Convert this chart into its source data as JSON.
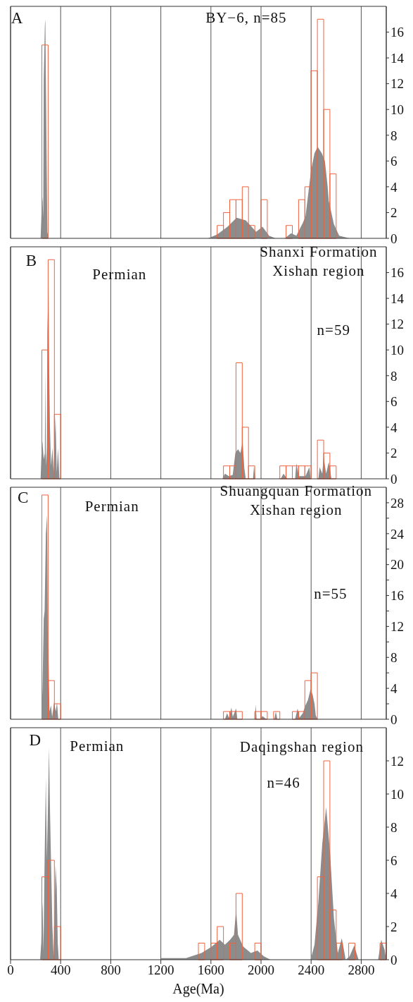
{
  "chart_data": [
    {
      "type": "histogram",
      "xlim": [
        0,
        3000
      ],
      "xticks": [
        0,
        400,
        800,
        1200,
        1600,
        2000,
        2400,
        2800
      ],
      "ylim": [
        0,
        18
      ],
      "yticks": [
        0,
        2,
        4,
        6,
        8,
        10,
        12,
        14,
        16
      ],
      "grid": "x",
      "tick_labels": "y",
      "annotations": [
        "A",
        "BY−6, n=85"
      ],
      "series": [
        {
          "type": "histogram",
          "color": "#f0623e",
          "bins": [
            250,
            300,
            350,
            400,
            450,
            500,
            550,
            600,
            650,
            700,
            750,
            800,
            850,
            900,
            950,
            1000,
            1050,
            1100,
            1150,
            1200,
            1250,
            1300,
            1350,
            1400,
            1450,
            1500,
            1550,
            1600,
            1650,
            1700,
            1750,
            1800,
            1850,
            1900,
            1950,
            2000,
            2050,
            2100,
            2150,
            2200,
            2250,
            2300,
            2350,
            2400,
            2450,
            2500,
            2550,
            2600
          ],
          "values": [
            15,
            0,
            0,
            0,
            0,
            0,
            0,
            0,
            0,
            0,
            0,
            0,
            0,
            0,
            0,
            0,
            0,
            0,
            0,
            0,
            0,
            0,
            0,
            0,
            0,
            0,
            0,
            0,
            1,
            2,
            3,
            3,
            4,
            1,
            0,
            3,
            0,
            0,
            0,
            1,
            0,
            3,
            4,
            13,
            17,
            10,
            5
          ]
        },
        {
          "type": "area",
          "color": "#8c8c8c",
          "x": [
            240,
            247,
            255,
            261,
            265,
            274,
            278,
            282,
            288,
            294,
            303,
            1577,
            1650,
            1733,
            1805,
            1878,
            1961,
            2012,
            2064,
            2116,
            2189,
            2240,
            2282,
            2334,
            2355,
            2375,
            2400,
            2427,
            2452,
            2485,
            2510,
            2531,
            2541,
            2582,
            2624,
            2707
          ],
          "values": [
            0,
            1.9,
            3.2,
            1.6,
            12.4,
            16.5,
            17,
            12.4,
            6.4,
            0.5,
            0,
            0,
            0.3,
            0.9,
            1.6,
            1.4,
            0.5,
            0.9,
            0.2,
            0,
            0,
            0.4,
            0.2,
            1.2,
            1.7,
            3.3,
            5.3,
            6.6,
            7.1,
            6.6,
            6.0,
            4.1,
            2.9,
            1.1,
            0.2,
            0
          ]
        }
      ]
    },
    {
      "type": "histogram",
      "xlim": [
        0,
        3000
      ],
      "xticks": [
        0,
        400,
        800,
        1200,
        1600,
        2000,
        2400,
        2800
      ],
      "ylim": [
        0,
        18
      ],
      "yticks": [
        0,
        2,
        4,
        6,
        8,
        10,
        12,
        14,
        16
      ],
      "grid": "x",
      "tick_labels": "y",
      "annotations": [
        "B",
        "Permian",
        "Shanxi Formation\nXishan region",
        "n=59"
      ],
      "series": [
        {
          "type": "histogram",
          "color": "#f0623e",
          "bins": [
            250,
            300,
            350,
            400,
            450,
            500,
            550,
            600,
            650,
            700,
            750,
            800,
            850,
            900,
            950,
            1000,
            1050,
            1100,
            1150,
            1200,
            1250,
            1300,
            1350,
            1400,
            1450,
            1500,
            1550,
            1600,
            1650,
            1700,
            1750,
            1800,
            1850,
            1900,
            1950,
            2000,
            2050,
            2100,
            2150,
            2200,
            2250,
            2300,
            2350,
            2400,
            2450,
            2500,
            2550,
            2600
          ],
          "values": [
            10,
            17,
            5,
            0,
            0,
            0,
            0,
            0,
            0,
            0,
            0,
            0,
            0,
            0,
            0,
            0,
            0,
            0,
            0,
            0,
            0,
            0,
            0,
            0,
            0,
            0,
            0,
            0,
            0,
            1,
            1,
            9,
            4,
            1,
            0,
            0,
            0,
            0,
            1,
            1,
            1,
            1,
            1,
            0,
            3,
            2,
            1
          ]
        },
        {
          "type": "area",
          "color": "#8c8c8c",
          "x": [
            240,
            251,
            255,
            265,
            274,
            278,
            282,
            286,
            290,
            294,
            303,
            309,
            315,
            323,
            334,
            344,
            359,
            369,
            379,
            390,
            1691,
            1712,
            1743,
            1774,
            1795,
            1816,
            1836,
            1853,
            1867,
            1878,
            1936,
            1944,
            1954,
            2158,
            2179,
            2210,
            2272,
            2282,
            2303,
            2355,
            2386,
            2396,
            2458,
            2468,
            2489,
            2500,
            2520,
            2541,
            2562
          ],
          "values": [
            0,
            3,
            2.8,
            1.5,
            2,
            8.5,
            2,
            1,
            2.5,
            11.4,
            15.2,
            8,
            3.9,
            1,
            2.4,
            0.5,
            4.9,
            0.5,
            2.4,
            0,
            0,
            0.4,
            0.2,
            0.3,
            2,
            2.3,
            2,
            2.9,
            0.8,
            0,
            0,
            1,
            0,
            0,
            0.4,
            0,
            0,
            1.2,
            0.2,
            0.2,
            0.9,
            0,
            0,
            0.9,
            0.4,
            1.7,
            0.4,
            1.3,
            0
          ]
        }
      ]
    },
    {
      "type": "histogram",
      "xlim": [
        0,
        3000
      ],
      "xticks": [
        0,
        400,
        800,
        1200,
        1600,
        2000,
        2400,
        2800
      ],
      "ylim": [
        0,
        30
      ],
      "yticks": [
        0,
        {
          "value": 2,
          "label": null
        },
        4,
        {
          "value": 6,
          "label": null
        },
        8,
        {
          "value": 10,
          "label": null
        },
        12,
        {
          "value": 14,
          "label": null
        },
        16,
        {
          "value": 18,
          "label": null
        },
        20,
        {
          "value": 22,
          "label": null
        },
        24,
        {
          "value": 26,
          "label": null
        },
        28
      ],
      "grid": "x",
      "tick_labels": "y",
      "annotations": [
        "C",
        "Permian",
        "Shuangquan Formation\nXishan region",
        "n=55"
      ],
      "series": [
        {
          "type": "histogram",
          "color": "#f0623e",
          "bins": [
            250,
            300,
            350,
            400,
            450,
            500,
            550,
            600,
            650,
            700,
            750,
            800,
            850,
            900,
            950,
            1000,
            1050,
            1100,
            1150,
            1200,
            1250,
            1300,
            1350,
            1400,
            1450,
            1500,
            1550,
            1600,
            1650,
            1700,
            1750,
            1800,
            1850,
            1900,
            1950,
            2000,
            2050,
            2100,
            2150,
            2200,
            2250,
            2300,
            2350,
            2400,
            2450
          ],
          "values": [
            29,
            5,
            2,
            0,
            0,
            0,
            0,
            0,
            0,
            0,
            0,
            0,
            0,
            0,
            0,
            0,
            0,
            0,
            0,
            0,
            0,
            0,
            0,
            0,
            0,
            0,
            0,
            0,
            0,
            1,
            1,
            1,
            0,
            0,
            1,
            1,
            0,
            1,
            0,
            0,
            1,
            1,
            5,
            6
          ]
        },
        {
          "type": "area",
          "color": "#8c8c8c",
          "x": [
            247,
            255,
            265,
            272,
            282,
            292,
            298,
            303,
            311,
            323,
            332,
            348,
            361,
            371,
            381,
            1712,
            1729,
            1743,
            1764,
            1774,
            1801,
            1811,
            1950,
            1957,
            1965,
            1992,
            2012,
            2043,
            2106,
            2118,
            2130,
            2272,
            2292,
            2307,
            2334,
            2355,
            2375,
            2396,
            2412,
            2427,
            2437,
            2452
          ],
          "values": [
            0,
            4,
            13,
            14,
            24,
            26.4,
            10,
            8.2,
            1,
            1.8,
            0.3,
            2.2,
            1,
            2.2,
            0,
            0,
            0.8,
            0.2,
            1.5,
            0.3,
            1.4,
            0,
            0,
            1.9,
            0,
            0,
            0.4,
            0,
            0,
            1,
            0,
            0,
            1.4,
            0.2,
            0.8,
            1.8,
            2.5,
            3.9,
            3.2,
            2,
            0.5,
            0
          ]
        }
      ]
    },
    {
      "type": "histogram",
      "xlim": [
        0,
        3000
      ],
      "xticks": [
        0,
        400,
        800,
        1200,
        1600,
        2000,
        2400,
        2800
      ],
      "ylim": [
        0,
        14
      ],
      "yticks": [
        0,
        2,
        4,
        6,
        8,
        10,
        12
      ],
      "grid": "x",
      "xlabel": "Age(Ma)",
      "annotations": [
        "D",
        "Permian",
        "Daqingshan region",
        "n=46"
      ],
      "series": [
        {
          "type": "histogram",
          "color": "#f0623e",
          "bins": [
            250,
            300,
            350,
            400,
            450,
            500,
            550,
            600,
            650,
            700,
            750,
            800,
            850,
            900,
            950,
            1000,
            1050,
            1100,
            1150,
            1200,
            1250,
            1300,
            1350,
            1400,
            1450,
            1500,
            1550,
            1600,
            1650,
            1700,
            1750,
            1800,
            1850,
            1900,
            1950,
            2000,
            2050,
            2100,
            2150,
            2200,
            2250,
            2300,
            2350,
            2400,
            2450,
            2500,
            2550,
            2600,
            2650,
            2700,
            2750,
            2800,
            2850,
            2900,
            2950,
            3000
          ],
          "values": [
            5,
            6,
            2,
            0,
            0,
            0,
            0,
            0,
            0,
            0,
            0,
            0,
            0,
            0,
            0,
            0,
            0,
            0,
            0,
            0,
            0,
            0,
            0,
            0,
            0,
            1,
            0,
            1,
            2,
            0,
            1,
            4,
            0,
            0,
            1,
            0,
            0,
            0,
            0,
            0,
            0,
            0,
            0,
            0,
            5,
            12,
            3,
            1,
            0,
            1,
            0,
            0,
            0,
            0,
            1
          ]
        },
        {
          "type": "area",
          "color": "#8c8c8c",
          "x": [
            236,
            245,
            255,
            263,
            272,
            282,
            290,
            298,
            307,
            315,
            323,
            334,
            344,
            359,
            369,
            377,
            385,
            1194,
            1204,
            1401,
            1443,
            1525,
            1608,
            1670,
            1712,
            1753,
            1784,
            1801,
            1816,
            1857,
            1919,
            1971,
            2023,
            2075,
            2396,
            2427,
            2458,
            2489,
            2520,
            2551,
            2582,
            2613,
            2645,
            2676,
            2707,
            2744,
            2779,
            2935,
            2960,
            2987,
            3000
          ],
          "values": [
            0,
            1,
            3.5,
            0.5,
            6,
            11,
            6,
            9,
            12.8,
            9,
            6,
            2,
            0.2,
            5.7,
            4.3,
            1,
            0,
            0,
            0.1,
            0.1,
            0.2,
            0.4,
            0.8,
            1.2,
            0.9,
            1.2,
            1.5,
            3,
            1.5,
            0.8,
            0.4,
            0.55,
            0.2,
            0,
            0,
            0.9,
            3.5,
            7,
            9.2,
            6.5,
            2.5,
            0.4,
            1.3,
            0,
            0.2,
            0.85,
            0,
            0,
            1.2,
            0.6,
            0
          ]
        }
      ]
    }
  ]
}
